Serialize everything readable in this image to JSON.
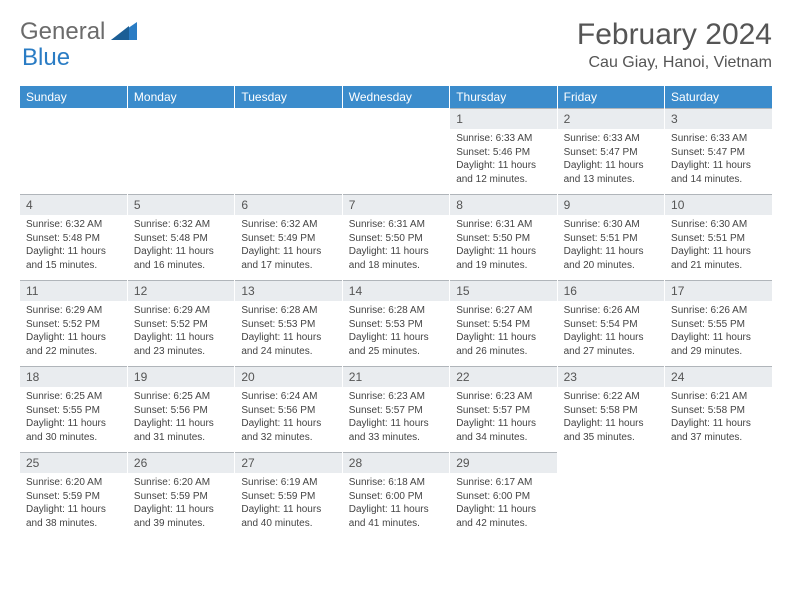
{
  "logo": {
    "text1": "General",
    "text2": "Blue"
  },
  "title": "February 2024",
  "location": "Cau Giay, Hanoi, Vietnam",
  "colors": {
    "header_bg": "#3b8ccc",
    "header_text": "#ffffff",
    "daynum_bg": "#e9ecef",
    "daynum_border": "#b0b5ba",
    "text": "#444444",
    "logo_gray": "#6b6b6b",
    "logo_blue": "#2a7cc4"
  },
  "typography": {
    "title_fontsize": 30,
    "location_fontsize": 16,
    "header_fontsize": 12,
    "daynum_fontsize": 12,
    "details_fontsize": 10
  },
  "weekdays": [
    "Sunday",
    "Monday",
    "Tuesday",
    "Wednesday",
    "Thursday",
    "Friday",
    "Saturday"
  ],
  "weeks": [
    [
      null,
      null,
      null,
      null,
      {
        "n": "1",
        "sr": "6:33 AM",
        "ss": "5:46 PM",
        "dl": "11 hours and 12 minutes."
      },
      {
        "n": "2",
        "sr": "6:33 AM",
        "ss": "5:47 PM",
        "dl": "11 hours and 13 minutes."
      },
      {
        "n": "3",
        "sr": "6:33 AM",
        "ss": "5:47 PM",
        "dl": "11 hours and 14 minutes."
      }
    ],
    [
      {
        "n": "4",
        "sr": "6:32 AM",
        "ss": "5:48 PM",
        "dl": "11 hours and 15 minutes."
      },
      {
        "n": "5",
        "sr": "6:32 AM",
        "ss": "5:48 PM",
        "dl": "11 hours and 16 minutes."
      },
      {
        "n": "6",
        "sr": "6:32 AM",
        "ss": "5:49 PM",
        "dl": "11 hours and 17 minutes."
      },
      {
        "n": "7",
        "sr": "6:31 AM",
        "ss": "5:50 PM",
        "dl": "11 hours and 18 minutes."
      },
      {
        "n": "8",
        "sr": "6:31 AM",
        "ss": "5:50 PM",
        "dl": "11 hours and 19 minutes."
      },
      {
        "n": "9",
        "sr": "6:30 AM",
        "ss": "5:51 PM",
        "dl": "11 hours and 20 minutes."
      },
      {
        "n": "10",
        "sr": "6:30 AM",
        "ss": "5:51 PM",
        "dl": "11 hours and 21 minutes."
      }
    ],
    [
      {
        "n": "11",
        "sr": "6:29 AM",
        "ss": "5:52 PM",
        "dl": "11 hours and 22 minutes."
      },
      {
        "n": "12",
        "sr": "6:29 AM",
        "ss": "5:52 PM",
        "dl": "11 hours and 23 minutes."
      },
      {
        "n": "13",
        "sr": "6:28 AM",
        "ss": "5:53 PM",
        "dl": "11 hours and 24 minutes."
      },
      {
        "n": "14",
        "sr": "6:28 AM",
        "ss": "5:53 PM",
        "dl": "11 hours and 25 minutes."
      },
      {
        "n": "15",
        "sr": "6:27 AM",
        "ss": "5:54 PM",
        "dl": "11 hours and 26 minutes."
      },
      {
        "n": "16",
        "sr": "6:26 AM",
        "ss": "5:54 PM",
        "dl": "11 hours and 27 minutes."
      },
      {
        "n": "17",
        "sr": "6:26 AM",
        "ss": "5:55 PM",
        "dl": "11 hours and 29 minutes."
      }
    ],
    [
      {
        "n": "18",
        "sr": "6:25 AM",
        "ss": "5:55 PM",
        "dl": "11 hours and 30 minutes."
      },
      {
        "n": "19",
        "sr": "6:25 AM",
        "ss": "5:56 PM",
        "dl": "11 hours and 31 minutes."
      },
      {
        "n": "20",
        "sr": "6:24 AM",
        "ss": "5:56 PM",
        "dl": "11 hours and 32 minutes."
      },
      {
        "n": "21",
        "sr": "6:23 AM",
        "ss": "5:57 PM",
        "dl": "11 hours and 33 minutes."
      },
      {
        "n": "22",
        "sr": "6:23 AM",
        "ss": "5:57 PM",
        "dl": "11 hours and 34 minutes."
      },
      {
        "n": "23",
        "sr": "6:22 AM",
        "ss": "5:58 PM",
        "dl": "11 hours and 35 minutes."
      },
      {
        "n": "24",
        "sr": "6:21 AM",
        "ss": "5:58 PM",
        "dl": "11 hours and 37 minutes."
      }
    ],
    [
      {
        "n": "25",
        "sr": "6:20 AM",
        "ss": "5:59 PM",
        "dl": "11 hours and 38 minutes."
      },
      {
        "n": "26",
        "sr": "6:20 AM",
        "ss": "5:59 PM",
        "dl": "11 hours and 39 minutes."
      },
      {
        "n": "27",
        "sr": "6:19 AM",
        "ss": "5:59 PM",
        "dl": "11 hours and 40 minutes."
      },
      {
        "n": "28",
        "sr": "6:18 AM",
        "ss": "6:00 PM",
        "dl": "11 hours and 41 minutes."
      },
      {
        "n": "29",
        "sr": "6:17 AM",
        "ss": "6:00 PM",
        "dl": "11 hours and 42 minutes."
      },
      null,
      null
    ]
  ],
  "labels": {
    "sunrise": "Sunrise:",
    "sunset": "Sunset:",
    "daylight": "Daylight:"
  }
}
